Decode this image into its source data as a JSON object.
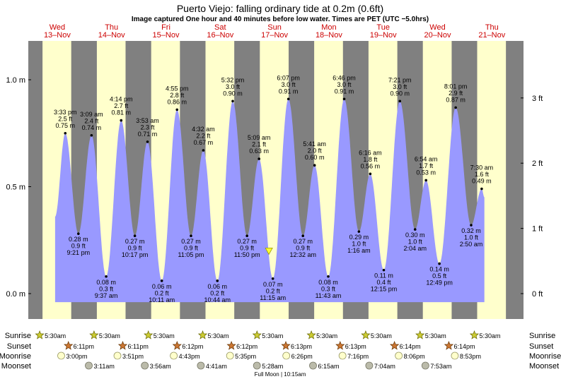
{
  "header": {
    "title": "Puerto Viejo: falling  ordinary tide at 0.2m (0.6ft)",
    "subtitle": "Image captured One hour and 40 minutes before low water. Times are PET (UTC −5.0hrs)"
  },
  "colors": {
    "day": "#ffffcc",
    "night": "#808080",
    "tide": "#9999ff",
    "day_label": "#cc0000"
  },
  "days": [
    {
      "dow": "Wed",
      "date": "13–Nov"
    },
    {
      "dow": "Thu",
      "date": "14–Nov"
    },
    {
      "dow": "Fri",
      "date": "15–Nov"
    },
    {
      "dow": "Sat",
      "date": "16–Nov"
    },
    {
      "dow": "Sun",
      "date": "17–Nov"
    },
    {
      "dow": "Mon",
      "date": "18–Nov"
    },
    {
      "dow": "Tue",
      "date": "19–Nov"
    },
    {
      "dow": "Wed",
      "date": "20–Nov"
    },
    {
      "dow": "Thu",
      "date": "21–Nov"
    }
  ],
  "chart_data": {
    "type": "area",
    "x_unit": "hours from midnight PET, 13-Nov",
    "y_unit": "m",
    "ylim": [
      -0.05,
      1.18
    ],
    "left_axis": {
      "ticks": [
        0.0,
        0.5,
        1.0
      ],
      "labels": [
        "0.0 m",
        "0.5 m",
        "1.0 m"
      ]
    },
    "right_axis": {
      "ticks": [
        0,
        1,
        2,
        3
      ],
      "labels": [
        "0 ft",
        "1 ft",
        "2 ft",
        "3 ft"
      ]
    },
    "current_level_m": 0.2,
    "current_time_h": 105.5,
    "extremes": [
      {
        "t": 15.55,
        "m": 0.75,
        "ft": "2.5 ft",
        "time": "3:33 pm",
        "label_m": "0.75 m",
        "kind": "high"
      },
      {
        "t": 21.35,
        "m": 0.28,
        "ft": "0.9 ft",
        "time": "9:21 pm",
        "label_m": "0.28 m",
        "kind": "low"
      },
      {
        "t": 27.15,
        "m": 0.74,
        "ft": "2.4 ft",
        "time": "3:09 am",
        "label_m": "0.74 m",
        "kind": "high"
      },
      {
        "t": 33.617,
        "m": 0.08,
        "ft": "0.3 ft",
        "time": "9:37 am",
        "label_m": "0.08 m",
        "kind": "low"
      },
      {
        "t": 40.233,
        "m": 0.81,
        "ft": "2.7 ft",
        "time": "4:14 pm",
        "label_m": "0.81 m",
        "kind": "high"
      },
      {
        "t": 46.283,
        "m": 0.27,
        "ft": "0.9 ft",
        "time": "10:17 pm",
        "label_m": "0.27 m",
        "kind": "low"
      },
      {
        "t": 51.883,
        "m": 0.71,
        "ft": "2.3 ft",
        "time": "3:53 am",
        "label_m": "0.71 m",
        "kind": "high"
      },
      {
        "t": 58.183,
        "m": 0.06,
        "ft": "0.2 ft",
        "time": "10:11 am",
        "label_m": "0.06 m",
        "kind": "low"
      },
      {
        "t": 64.917,
        "m": 0.86,
        "ft": "2.8 ft",
        "time": "4:55 pm",
        "label_m": "0.86 m",
        "kind": "high"
      },
      {
        "t": 71.083,
        "m": 0.27,
        "ft": "0.9 ft",
        "time": "11:05 pm",
        "label_m": "0.27 m",
        "kind": "low"
      },
      {
        "t": 76.533,
        "m": 0.67,
        "ft": "2.2 ft",
        "time": "4:32 am",
        "label_m": "0.67 m",
        "kind": "high"
      },
      {
        "t": 82.733,
        "m": 0.06,
        "ft": "0.2 ft",
        "time": "10:44 am",
        "label_m": "0.06 m",
        "kind": "low"
      },
      {
        "t": 89.533,
        "m": 0.9,
        "ft": "3.0 ft",
        "time": "5:32 pm",
        "label_m": "0.90 m",
        "kind": "high"
      },
      {
        "t": 95.833,
        "m": 0.27,
        "ft": "0.9 ft",
        "time": "11:50 pm",
        "label_m": "0.27 m",
        "kind": "low"
      },
      {
        "t": 101.15,
        "m": 0.63,
        "ft": "2.1 ft",
        "time": "5:09 am",
        "label_m": "0.63 m",
        "kind": "high"
      },
      {
        "t": 107.25,
        "m": 0.07,
        "ft": "0.2 ft",
        "time": "11:15 am",
        "label_m": "0.07 m",
        "kind": "low"
      },
      {
        "t": 114.117,
        "m": 0.91,
        "ft": "3.0 ft",
        "time": "6:07 pm",
        "label_m": "0.91 m",
        "kind": "high"
      },
      {
        "t": 120.533,
        "m": 0.27,
        "ft": "0.9 ft",
        "time": "12:32 am",
        "label_m": "0.27 m",
        "kind": "low"
      },
      {
        "t": 125.683,
        "m": 0.6,
        "ft": "2.0 ft",
        "time": "5:41 am",
        "label_m": "0.60 m",
        "kind": "high"
      },
      {
        "t": 131.717,
        "m": 0.08,
        "ft": "0.3 ft",
        "time": "11:43 am",
        "label_m": "0.08 m",
        "kind": "low"
      },
      {
        "t": 138.767,
        "m": 0.91,
        "ft": "3.0 ft",
        "time": "6:46 pm",
        "label_m": "0.91 m",
        "kind": "high"
      },
      {
        "t": 145.267,
        "m": 0.29,
        "ft": "1.0 ft",
        "time": "1:16 am",
        "label_m": "0.29 m",
        "kind": "low"
      },
      {
        "t": 150.267,
        "m": 0.56,
        "ft": "1.8 ft",
        "time": "6:16 am",
        "label_m": "0.56 m",
        "kind": "high"
      },
      {
        "t": 156.25,
        "m": 0.11,
        "ft": "0.4 ft",
        "time": "12:15 pm",
        "label_m": "0.11 m",
        "kind": "low"
      },
      {
        "t": 163.35,
        "m": 0.9,
        "ft": "3.0 ft",
        "time": "7:21 pm",
        "label_m": "0.90 m",
        "kind": "high"
      },
      {
        "t": 170.067,
        "m": 0.3,
        "ft": "1.0 ft",
        "time": "2:04 am",
        "label_m": "0.30 m",
        "kind": "low"
      },
      {
        "t": 174.9,
        "m": 0.53,
        "ft": "1.7 ft",
        "time": "6:54 am",
        "label_m": "0.53 m",
        "kind": "high"
      },
      {
        "t": 180.817,
        "m": 0.14,
        "ft": "0.5 ft",
        "time": "12:49 pm",
        "label_m": "0.14 m",
        "kind": "low"
      },
      {
        "t": 188.017,
        "m": 0.87,
        "ft": "2.9 ft",
        "time": "8:01 pm",
        "label_m": "0.87 m",
        "kind": "high"
      },
      {
        "t": 194.833,
        "m": 0.32,
        "ft": "1.0 ft",
        "time": "2:50 am",
        "label_m": "0.32 m",
        "kind": "low"
      },
      {
        "t": 199.5,
        "m": 0.49,
        "ft": "1.6 ft",
        "time": "7:30 am",
        "label_m": "0.49 m",
        "kind": "high"
      }
    ]
  },
  "astro": {
    "row_labels": {
      "sunrise": "Sunrise",
      "sunset": "Sunset",
      "moonrise": "Moonrise",
      "moonset": "Moonset"
    },
    "sunrise": [
      "5:30am",
      "5:30am",
      "5:30am",
      "5:30am",
      "5:30am",
      "5:30am",
      "5:30am",
      "5:30am",
      "5:30am"
    ],
    "sunset": [
      "6:11pm",
      "6:11pm",
      "6:12pm",
      "6:12pm",
      "6:13pm",
      "6:13pm",
      "6:14pm",
      "6:14pm"
    ],
    "moonrise": [
      "3:00pm",
      "3:51pm",
      "4:43pm",
      "5:35pm",
      "6:26pm",
      "7:16pm",
      "8:06pm",
      "8:53pm"
    ],
    "moonset": [
      "3:11am",
      "3:56am",
      "4:41am",
      "5:28am",
      "6:15am",
      "7:04am",
      "7:53am"
    ],
    "footnote": "Full Moon | 10:15am"
  }
}
